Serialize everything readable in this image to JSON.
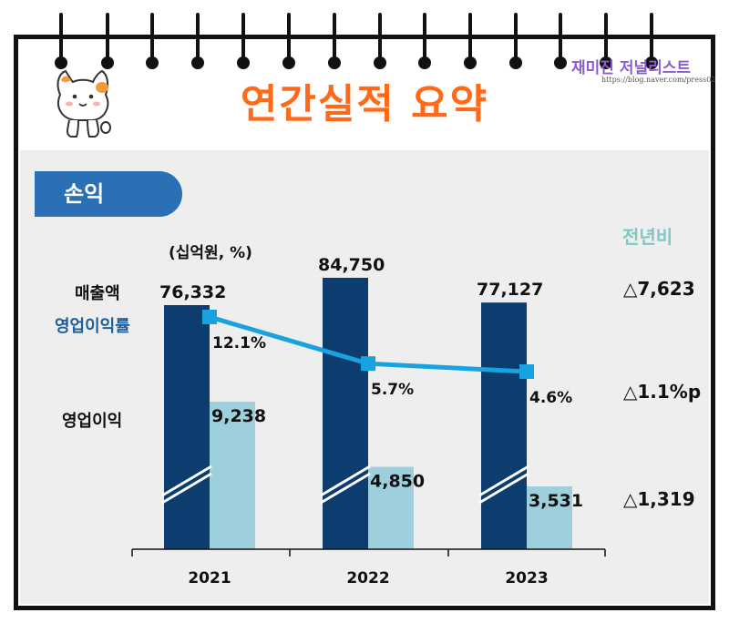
{
  "header": {
    "title": "연간실적 요약",
    "watermark": "재미진 저널리스트",
    "watermark_url": "https://blog.naver.com/press02"
  },
  "section": {
    "label": "손익"
  },
  "units": "(십억원, %)",
  "yoy_header": "전년비",
  "labels": {
    "revenue": "매출액",
    "margin": "영업이익률",
    "op_income": "영업이익"
  },
  "yoy": {
    "revenue": "△7,623",
    "margin": "△1.1%p",
    "op_income": "△1,319"
  },
  "colors": {
    "revenue_bar": "#0d3c6e",
    "op_income_bar": "#9ecfdc",
    "margin_line": "#18a2e0",
    "title": "#ff6a1a",
    "tab": "#2b6fb4"
  },
  "chart_data": {
    "type": "bar",
    "categories": [
      "2021",
      "2022",
      "2023"
    ],
    "series": [
      {
        "name": "매출액",
        "values": [
          76332,
          84750,
          77127
        ],
        "labels": [
          "76,332",
          "84,750",
          "77,127"
        ]
      },
      {
        "name": "영업이익",
        "values": [
          9238,
          4850,
          3531
        ],
        "labels": [
          "9,238",
          "4,850",
          "3,531"
        ]
      }
    ],
    "line_series": {
      "name": "영업이익률",
      "values": [
        12.1,
        5.7,
        4.6
      ],
      "labels": [
        "12.1%",
        "5.7%",
        "4.6%"
      ]
    },
    "axis_break": true,
    "grid": false
  }
}
